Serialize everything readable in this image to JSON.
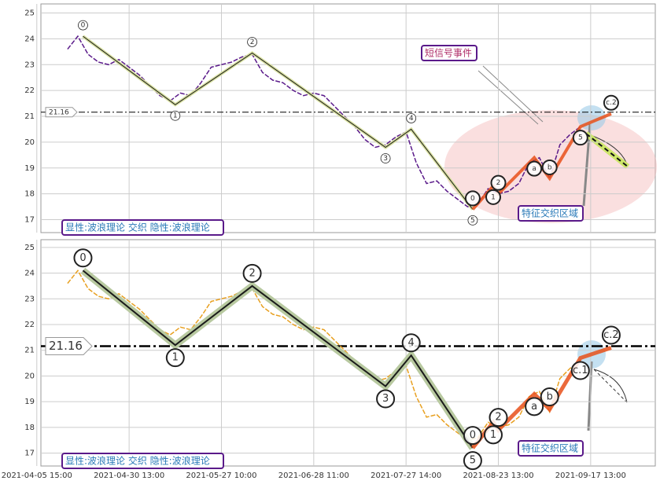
{
  "chart_data": [
    {
      "type": "line",
      "xlim": [
        0.8,
        120.6
      ],
      "ylim": [
        16.5,
        25.35
      ],
      "yticks": [
        17,
        18,
        19,
        20,
        21,
        22,
        23,
        24,
        25
      ],
      "grid": true,
      "hline": {
        "value": 21.16,
        "label": "21.16"
      },
      "x": [
        6,
        8,
        10,
        12,
        14,
        16,
        18,
        20,
        22,
        24,
        26,
        28,
        30,
        32,
        34,
        36,
        38,
        40,
        42,
        44,
        46,
        48,
        50,
        52,
        54,
        56,
        58,
        60,
        62,
        64,
        66,
        68,
        70,
        72,
        74,
        76,
        78,
        80,
        82,
        84,
        86,
        88,
        90,
        92,
        94,
        96,
        98,
        100,
        102,
        104,
        106
      ],
      "series": [
        {
          "color": "#5a1a8a",
          "values": [
            23.6,
            24.1,
            23.4,
            23.1,
            23.0,
            23.2,
            22.9,
            22.6,
            22.2,
            21.8,
            21.6,
            21.9,
            21.8,
            22.3,
            22.9,
            23.0,
            23.1,
            23.3,
            23.4,
            22.7,
            22.4,
            22.3,
            22.0,
            21.8,
            21.9,
            21.8,
            21.4,
            21.0,
            20.6,
            20.1,
            19.8,
            19.9,
            20.2,
            20.4,
            19.2,
            18.4,
            18.5,
            18.1,
            17.8,
            17.5,
            17.6,
            18.2,
            18.0,
            18.1,
            18.4,
            19.2,
            19.4,
            18.6,
            19.9,
            20.3,
            20.6
          ]
        }
      ],
      "waves": [
        {
          "color": "#1a1a1a",
          "x": [
            9,
            27,
            42,
            68,
            73,
            85
          ],
          "values": [
            24.1,
            21.45,
            23.45,
            19.8,
            20.5,
            17.4
          ],
          "labels": [
            "0",
            "1",
            "2",
            "3",
            "4",
            "5"
          ]
        },
        {
          "color": "#e8501a",
          "x": [
            85,
            89,
            90,
            97,
            100,
            106,
            112
          ],
          "values": [
            17.4,
            18.3,
            18.0,
            19.4,
            18.6,
            20.6,
            21.1
          ],
          "labels": [
            "0",
            "1",
            "2",
            "a",
            "b",
            "5",
            "c.2"
          ]
        }
      ],
      "annotations": [
        "短信号事件",
        "特征交织区域",
        "显性:波浪理论 交织 隐性:波浪理论"
      ]
    },
    {
      "type": "line",
      "xlim": [
        0.8,
        120.6
      ],
      "ylim": [
        16.5,
        25.3
      ],
      "yticks": [
        17,
        18,
        19,
        20,
        21,
        22,
        23,
        24,
        25
      ],
      "grid": true,
      "hline": {
        "value": 21.16,
        "label": "21.16"
      },
      "xticks": [
        {
          "value": 0,
          "label": "2021-04-05 15:00"
        },
        {
          "value": 18,
          "label": "2021-04-30 13:00"
        },
        {
          "value": 36,
          "label": "2021-05-27 10:00"
        },
        {
          "value": 54,
          "label": "2021-06-28 11:00"
        },
        {
          "value": 72,
          "label": "2021-07-27 14:00"
        },
        {
          "value": 90,
          "label": "2021-08-23 13:00"
        },
        {
          "value": 108,
          "label": "2021-09-17 13:00"
        }
      ],
      "x": [
        6,
        8,
        10,
        12,
        14,
        16,
        18,
        20,
        22,
        24,
        26,
        28,
        30,
        32,
        34,
        36,
        38,
        40,
        42,
        44,
        46,
        48,
        50,
        52,
        54,
        56,
        58,
        60,
        62,
        64,
        66,
        68,
        70,
        72,
        74,
        76,
        78,
        80,
        82,
        84,
        86,
        88,
        90,
        92,
        94,
        96,
        98,
        100,
        102,
        104,
        106
      ],
      "series": [
        {
          "color": "#e8a020",
          "values": [
            23.6,
            24.1,
            23.4,
            23.1,
            23.0,
            23.2,
            22.9,
            22.6,
            22.2,
            21.8,
            21.6,
            21.9,
            21.8,
            22.3,
            22.9,
            23.0,
            23.1,
            23.3,
            23.4,
            22.7,
            22.4,
            22.3,
            22.0,
            21.8,
            21.9,
            21.8,
            21.4,
            21.0,
            20.6,
            20.1,
            19.8,
            19.9,
            20.2,
            20.4,
            19.2,
            18.4,
            18.5,
            18.1,
            17.8,
            17.5,
            17.6,
            18.2,
            18.0,
            18.1,
            18.4,
            19.2,
            19.4,
            18.6,
            19.9,
            20.3,
            20.6
          ]
        }
      ],
      "waves": [
        {
          "color": "#1a1a1a",
          "x": [
            9,
            27,
            42,
            68,
            73,
            85
          ],
          "values": [
            24.1,
            21.2,
            23.5,
            19.6,
            20.8,
            17.2
          ],
          "labels": [
            "0",
            "1",
            "2",
            "3",
            "4",
            "5"
          ]
        },
        {
          "color": "#e8501a",
          "x": [
            85,
            89,
            90,
            97,
            100,
            106,
            112
          ],
          "values": [
            17.2,
            18.2,
            17.9,
            19.3,
            18.7,
            20.7,
            21.1
          ],
          "labels": [
            "0",
            "1",
            "2",
            "a",
            "b",
            "c.1",
            "c.2"
          ]
        }
      ],
      "annotations": [
        "特征交织区域",
        "显性:波浪理论 交织 隐性:波浪理论"
      ]
    }
  ]
}
